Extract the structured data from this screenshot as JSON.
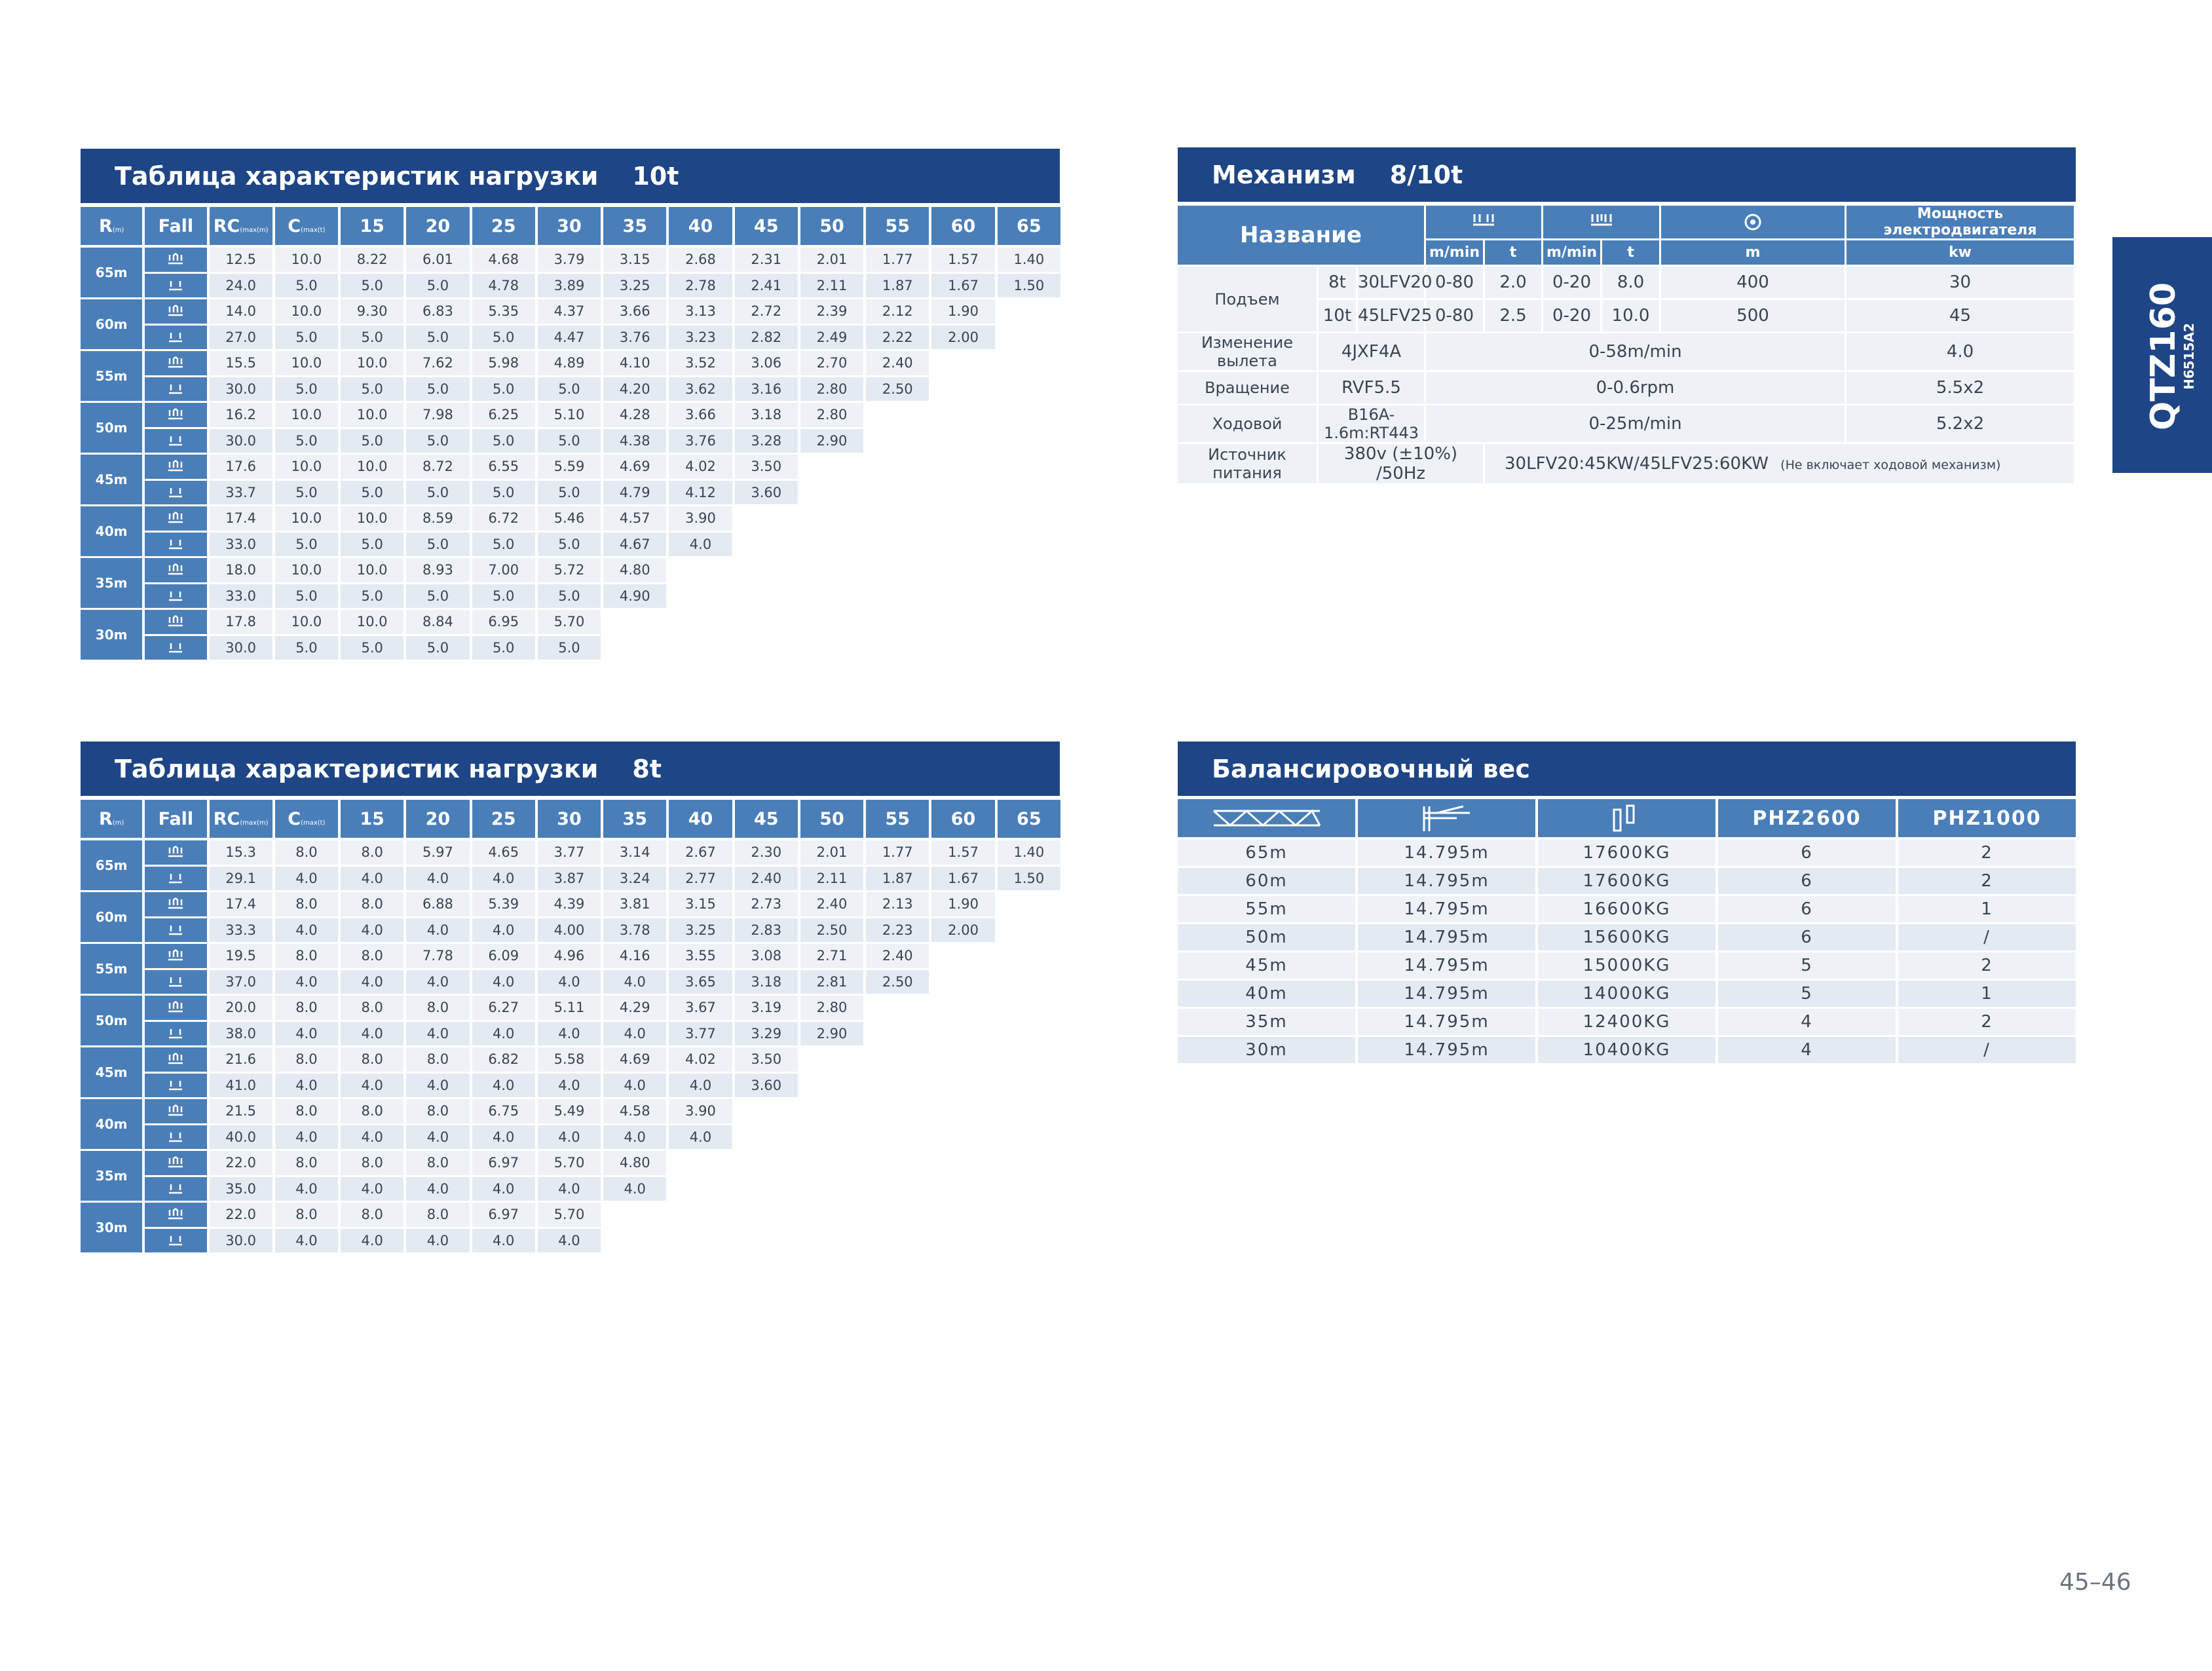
{
  "load_table_10t": {
    "title": "Таблица характеристик нагрузки",
    "title_value": "10t",
    "headers": {
      "r": "R",
      "r_unit": "(m)",
      "fall": "Fall",
      "rc": "RC",
      "rc_unit": "(max(m)",
      "c": "C",
      "c_unit": "(max(t)"
    },
    "distances": [
      "15",
      "20",
      "25",
      "30",
      "35",
      "40",
      "45",
      "50",
      "55",
      "60",
      "65"
    ],
    "groups": [
      {
        "radius": "65m",
        "rows": [
          [
            "12.5",
            "10.0",
            "8.22",
            "6.01",
            "4.68",
            "3.79",
            "3.15",
            "2.68",
            "2.31",
            "2.01",
            "1.77",
            "1.57",
            "1.40"
          ],
          [
            "24.0",
            "5.0",
            "5.0",
            "5.0",
            "4.78",
            "3.89",
            "3.25",
            "2.78",
            "2.41",
            "2.11",
            "1.87",
            "1.67",
            "1.50"
          ]
        ]
      },
      {
        "radius": "60m",
        "rows": [
          [
            "14.0",
            "10.0",
            "9.30",
            "6.83",
            "5.35",
            "4.37",
            "3.66",
            "3.13",
            "2.72",
            "2.39",
            "2.12",
            "1.90"
          ],
          [
            "27.0",
            "5.0",
            "5.0",
            "5.0",
            "5.0",
            "4.47",
            "3.76",
            "3.23",
            "2.82",
            "2.49",
            "2.22",
            "2.00"
          ]
        ]
      },
      {
        "radius": "55m",
        "rows": [
          [
            "15.5",
            "10.0",
            "10.0",
            "7.62",
            "5.98",
            "4.89",
            "4.10",
            "3.52",
            "3.06",
            "2.70",
            "2.40"
          ],
          [
            "30.0",
            "5.0",
            "5.0",
            "5.0",
            "5.0",
            "5.0",
            "4.20",
            "3.62",
            "3.16",
            "2.80",
            "2.50"
          ]
        ]
      },
      {
        "radius": "50m",
        "rows": [
          [
            "16.2",
            "10.0",
            "10.0",
            "7.98",
            "6.25",
            "5.10",
            "4.28",
            "3.66",
            "3.18",
            "2.80"
          ],
          [
            "30.0",
            "5.0",
            "5.0",
            "5.0",
            "5.0",
            "5.0",
            "4.38",
            "3.76",
            "3.28",
            "2.90"
          ]
        ]
      },
      {
        "radius": "45m",
        "rows": [
          [
            "17.6",
            "10.0",
            "10.0",
            "8.72",
            "6.55",
            "5.59",
            "4.69",
            "4.02",
            "3.50"
          ],
          [
            "33.7",
            "5.0",
            "5.0",
            "5.0",
            "5.0",
            "5.0",
            "4.79",
            "4.12",
            "3.60"
          ]
        ]
      },
      {
        "radius": "40m",
        "rows": [
          [
            "17.4",
            "10.0",
            "10.0",
            "8.59",
            "6.72",
            "5.46",
            "4.57",
            "3.90"
          ],
          [
            "33.0",
            "5.0",
            "5.0",
            "5.0",
            "5.0",
            "5.0",
            "4.67",
            "4.0"
          ]
        ]
      },
      {
        "radius": "35m",
        "rows": [
          [
            "18.0",
            "10.0",
            "10.0",
            "8.93",
            "7.00",
            "5.72",
            "4.80"
          ],
          [
            "33.0",
            "5.0",
            "5.0",
            "5.0",
            "5.0",
            "5.0",
            "4.90"
          ]
        ]
      },
      {
        "radius": "30m",
        "rows": [
          [
            "17.8",
            "10.0",
            "10.0",
            "8.84",
            "6.95",
            "5.70"
          ],
          [
            "30.0",
            "5.0",
            "5.0",
            "5.0",
            "5.0",
            "5.0"
          ]
        ]
      }
    ]
  },
  "load_table_8t": {
    "title": "Таблица характеристик нагрузки",
    "title_value": "8t",
    "headers": {
      "r": "R",
      "r_unit": "(m)",
      "fall": "Fall",
      "rc": "RC",
      "rc_unit": "(max(m)",
      "c": "C",
      "c_unit": "(max(t)"
    },
    "distances": [
      "15",
      "20",
      "25",
      "30",
      "35",
      "40",
      "45",
      "50",
      "55",
      "60",
      "65"
    ],
    "groups": [
      {
        "radius": "65m",
        "rows": [
          [
            "15.3",
            "8.0",
            "8.0",
            "5.97",
            "4.65",
            "3.77",
            "3.14",
            "2.67",
            "2.30",
            "2.01",
            "1.77",
            "1.57",
            "1.40"
          ],
          [
            "29.1",
            "4.0",
            "4.0",
            "4.0",
            "4.0",
            "3.87",
            "3.24",
            "2.77",
            "2.40",
            "2.11",
            "1.87",
            "1.67",
            "1.50"
          ]
        ]
      },
      {
        "radius": "60m",
        "rows": [
          [
            "17.4",
            "8.0",
            "8.0",
            "6.88",
            "5.39",
            "4.39",
            "3.81",
            "3.15",
            "2.73",
            "2.40",
            "2.13",
            "1.90"
          ],
          [
            "33.3",
            "4.0",
            "4.0",
            "4.0",
            "4.0",
            "4.00",
            "3.78",
            "3.25",
            "2.83",
            "2.50",
            "2.23",
            "2.00"
          ]
        ]
      },
      {
        "radius": "55m",
        "rows": [
          [
            "19.5",
            "8.0",
            "8.0",
            "7.78",
            "6.09",
            "4.96",
            "4.16",
            "3.55",
            "3.08",
            "2.71",
            "2.40"
          ],
          [
            "37.0",
            "4.0",
            "4.0",
            "4.0",
            "4.0",
            "4.0",
            "4.0",
            "3.65",
            "3.18",
            "2.81",
            "2.50"
          ]
        ]
      },
      {
        "radius": "50m",
        "rows": [
          [
            "20.0",
            "8.0",
            "8.0",
            "8.0",
            "6.27",
            "5.11",
            "4.29",
            "3.67",
            "3.19",
            "2.80"
          ],
          [
            "38.0",
            "4.0",
            "4.0",
            "4.0",
            "4.0",
            "4.0",
            "4.0",
            "3.77",
            "3.29",
            "2.90"
          ]
        ]
      },
      {
        "radius": "45m",
        "rows": [
          [
            "21.6",
            "8.0",
            "8.0",
            "8.0",
            "6.82",
            "5.58",
            "4.69",
            "4.02",
            "3.50"
          ],
          [
            "41.0",
            "4.0",
            "4.0",
            "4.0",
            "4.0",
            "4.0",
            "4.0",
            "4.0",
            "3.60"
          ]
        ]
      },
      {
        "radius": "40m",
        "rows": [
          [
            "21.5",
            "8.0",
            "8.0",
            "8.0",
            "6.75",
            "5.49",
            "4.58",
            "3.90"
          ],
          [
            "40.0",
            "4.0",
            "4.0",
            "4.0",
            "4.0",
            "4.0",
            "4.0",
            "4.0"
          ]
        ]
      },
      {
        "radius": "35m",
        "rows": [
          [
            "22.0",
            "8.0",
            "8.0",
            "8.0",
            "6.97",
            "5.70",
            "4.80"
          ],
          [
            "35.0",
            "4.0",
            "4.0",
            "4.0",
            "4.0",
            "4.0",
            "4.0"
          ]
        ]
      },
      {
        "radius": "30m",
        "rows": [
          [
            "22.0",
            "8.0",
            "8.0",
            "8.0",
            "6.97",
            "5.70"
          ],
          [
            "30.0",
            "4.0",
            "4.0",
            "4.0",
            "4.0",
            "4.0"
          ]
        ]
      }
    ]
  },
  "mechanism": {
    "title": "Механизм",
    "title_value": "8/10t",
    "name_header": "Название",
    "power_header": "Мощность электродвигателя",
    "unit_mmin": "m/min",
    "unit_t": "t",
    "unit_m": "m",
    "unit_kw": "kw",
    "lifting": {
      "label": "Подъем",
      "rows": [
        {
          "cap": "8t",
          "model": "30LFV20",
          "speed1": "0-80",
          "t1": "2.0",
          "speed2": "0-20",
          "t2": "8.0",
          "m": "400",
          "kw": "30"
        },
        {
          "cap": "10t",
          "model": "45LFV25",
          "speed1": "0-80",
          "t1": "2.5",
          "speed2": "0-20",
          "t2": "10.0",
          "m": "500",
          "kw": "45"
        }
      ]
    },
    "trolley": {
      "label": "Изменение вылета",
      "model": "4JXF4A",
      "speed": "0-58m/min",
      "kw": "4.0"
    },
    "slewing": {
      "label": "Вращение",
      "model": "RVF5.5",
      "speed": "0-0.6rpm",
      "kw": "5.5x2"
    },
    "travel": {
      "label": "Ходовой",
      "model": "B16A-1.6m:RT443",
      "speed": "0-25m/min",
      "kw": "5.2x2"
    },
    "power": {
      "label": "Источник питания",
      "value": "380v (±10%) /50Hz",
      "note": "30LFV20:45KW/45LFV25:60KW",
      "note_small": "(Не включает ходовой механизм)"
    }
  },
  "balance": {
    "title": "Балансировочный вес",
    "headers": [
      "PHZ2600",
      "PHZ1000"
    ],
    "rows": [
      [
        "65m",
        "14.795m",
        "17600KG",
        "6",
        "2"
      ],
      [
        "60m",
        "14.795m",
        "17600KG",
        "6",
        "2"
      ],
      [
        "55m",
        "14.795m",
        "16600KG",
        "6",
        "1"
      ],
      [
        "50m",
        "14.795m",
        "15600KG",
        "6",
        "/"
      ],
      [
        "45m",
        "14.795m",
        "15000KG",
        "5",
        "2"
      ],
      [
        "40m",
        "14.795m",
        "14000KG",
        "5",
        "1"
      ],
      [
        "35m",
        "14.795m",
        "12400KG",
        "4",
        "2"
      ],
      [
        "30m",
        "14.795m",
        "10400KG",
        "4",
        "/"
      ]
    ]
  },
  "side_tab": {
    "model": "QTZ160",
    "submodel": "H6515A2"
  },
  "page_number": "45–46",
  "colors": {
    "title_bg": "#1e4585",
    "header_bg": "#4a7eb8",
    "row_light": "#eef2f7",
    "row_dark": "#e4eaf2"
  }
}
